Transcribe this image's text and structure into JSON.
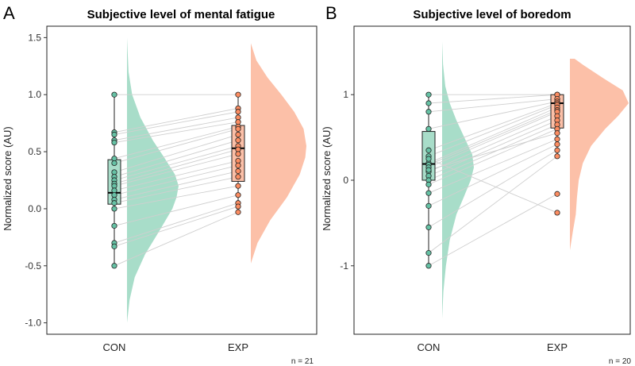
{
  "colors": {
    "con": "#66c2a5",
    "exp": "#fc8d62",
    "con_fill": "#a8ddc9",
    "exp_fill": "#fcc0a8",
    "pair_line": "#cfcfcf",
    "axis": "#333333",
    "panel_border": "#222222"
  },
  "chart_data": [
    {
      "type": "raincloud",
      "panel_label": "A",
      "title": "Subjective level of mental fatigue",
      "ylabel": "Normalized score (AU)",
      "xlabel": "",
      "categories": [
        "CON",
        "EXP"
      ],
      "ylim": [
        -1.1,
        1.6
      ],
      "yticks": [
        -1.0,
        -0.5,
        0.0,
        0.5,
        1.0,
        1.5
      ],
      "ytick_labels": [
        "-1.0",
        "-0.5",
        "0.0",
        "0.5",
        "1.0",
        "1.5"
      ],
      "grid": false,
      "n_label": "n = 21",
      "series": [
        {
          "name": "CON",
          "points": [
            1.0,
            0.67,
            0.65,
            0.6,
            0.58,
            0.44,
            0.4,
            0.32,
            0.28,
            0.25,
            0.22,
            0.2,
            0.16,
            0.12,
            0.08,
            0.05,
            0.0,
            -0.15,
            -0.3,
            -0.33,
            -0.5
          ],
          "box": {
            "q1": 0.04,
            "median": 0.14,
            "q3": 0.43,
            "whisker_low": -0.5,
            "whisker_high": 1.0
          },
          "density": {
            "y": [
              -1.0,
              -0.8,
              -0.6,
              -0.4,
              -0.2,
              0.0,
              0.1,
              0.2,
              0.3,
              0.45,
              0.6,
              0.8,
              1.0,
              1.2,
              1.5
            ],
            "d": [
              0.0,
              0.05,
              0.15,
              0.35,
              0.62,
              0.88,
              0.96,
              1.0,
              0.93,
              0.72,
              0.5,
              0.26,
              0.1,
              0.03,
              0.0
            ]
          }
        },
        {
          "name": "EXP",
          "points": [
            1.0,
            0.88,
            0.85,
            0.8,
            0.76,
            0.72,
            0.7,
            0.65,
            0.6,
            0.55,
            0.52,
            0.48,
            0.42,
            0.38,
            0.33,
            0.28,
            0.2,
            0.12,
            0.05,
            0.02,
            -0.03
          ],
          "box": {
            "q1": 0.24,
            "median": 0.53,
            "q3": 0.73,
            "whisker_low": -0.03,
            "whisker_high": 1.0
          },
          "density": {
            "y": [
              -0.48,
              -0.3,
              -0.1,
              0.1,
              0.3,
              0.45,
              0.55,
              0.7,
              0.85,
              1.0,
              1.15,
              1.3,
              1.45
            ],
            "d": [
              0.0,
              0.12,
              0.35,
              0.65,
              0.88,
              0.98,
              1.0,
              0.95,
              0.78,
              0.55,
              0.3,
              0.1,
              0.0
            ]
          }
        }
      ]
    },
    {
      "type": "raincloud",
      "panel_label": "B",
      "title": "Subjective level of boredom",
      "ylabel": "Normalized score (AU)",
      "xlabel": "",
      "categories": [
        "CON",
        "EXP"
      ],
      "ylim": [
        -1.8,
        1.8
      ],
      "yticks": [
        -1,
        0,
        1
      ],
      "ytick_labels": [
        "-1",
        "0",
        "1"
      ],
      "grid": false,
      "n_label": "n = 20",
      "series": [
        {
          "name": "CON",
          "points": [
            1.0,
            0.9,
            0.8,
            0.6,
            0.35,
            0.28,
            0.2,
            0.18,
            0.15,
            0.1,
            0.05,
            0.0,
            -0.05,
            -0.15,
            -0.3,
            -0.55,
            -0.85,
            -1.0,
            0.25,
            0.12
          ],
          "box": {
            "q1": 0.0,
            "median": 0.19,
            "q3": 0.57,
            "whisker_low": -1.0,
            "whisker_high": 1.0
          },
          "density": {
            "y": [
              -1.62,
              -1.3,
              -1.0,
              -0.7,
              -0.4,
              -0.2,
              0.0,
              0.15,
              0.3,
              0.5,
              0.7,
              0.9,
              1.1,
              1.35,
              1.62
            ],
            "d": [
              0.0,
              0.04,
              0.12,
              0.24,
              0.45,
              0.68,
              0.9,
              1.0,
              0.95,
              0.7,
              0.45,
              0.24,
              0.1,
              0.03,
              0.0
            ]
          }
        },
        {
          "name": "EXP",
          "points": [
            1.0,
            1.0,
            0.95,
            0.92,
            0.9,
            0.88,
            0.85,
            0.82,
            0.8,
            0.75,
            0.7,
            0.65,
            0.6,
            0.48,
            0.42,
            0.35,
            0.28,
            -0.16,
            -0.38,
            0.55
          ],
          "box": {
            "q1": 0.61,
            "median": 0.9,
            "q3": 1.0,
            "whisker_low": 0.28,
            "whisker_high": 1.0
          },
          "density": {
            "y": [
              -0.82,
              -0.6,
              -0.4,
              -0.2,
              0.0,
              0.2,
              0.4,
              0.6,
              0.75,
              0.9,
              1.05,
              1.2,
              1.35,
              1.42
            ],
            "d": [
              0.0,
              0.05,
              0.1,
              0.12,
              0.15,
              0.22,
              0.36,
              0.6,
              0.82,
              1.0,
              0.9,
              0.55,
              0.22,
              0.08
            ]
          }
        }
      ]
    }
  ]
}
